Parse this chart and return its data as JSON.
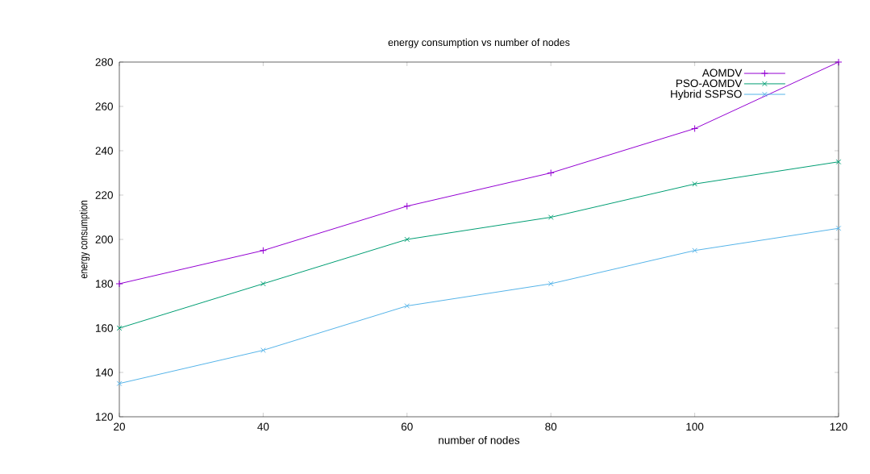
{
  "chart_data": {
    "type": "line",
    "title": "energy consumption vs number of nodes",
    "xlabel": "number of nodes",
    "ylabel": "energy consumption",
    "x": [
      20,
      40,
      60,
      80,
      100,
      120
    ],
    "series": [
      {
        "name": "AOMDV",
        "color": "#9400d3",
        "marker": "plus",
        "values": [
          180,
          195,
          215,
          230,
          250,
          280
        ]
      },
      {
        "name": "PSO-AOMDV",
        "color": "#009e73",
        "marker": "cross",
        "values": [
          160,
          180,
          200,
          210,
          225,
          235
        ]
      },
      {
        "name": "Hybrid SSPSO",
        "color": "#56b4e9",
        "marker": "cross",
        "values": [
          135,
          150,
          170,
          180,
          195,
          205
        ]
      }
    ],
    "xlim": [
      20,
      120
    ],
    "xticks": [
      20,
      40,
      60,
      80,
      100,
      120
    ],
    "ylim": [
      120,
      280
    ],
    "yticks": [
      120,
      140,
      160,
      180,
      200,
      220,
      240,
      260,
      280
    ],
    "legend": "top right",
    "grid": false,
    "line_style": "solid"
  }
}
